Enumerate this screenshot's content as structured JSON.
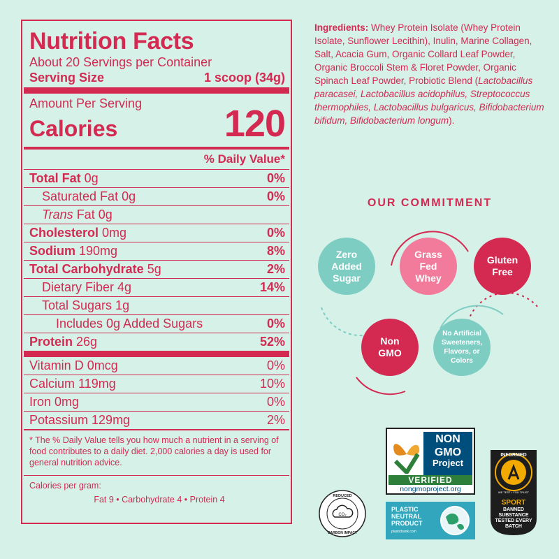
{
  "nutrition": {
    "title": "Nutrition Facts",
    "servings": "About 20 Servings per Container",
    "serving_size_label": "Serving Size",
    "serving_size_value": "1 scoop (34g)",
    "amount_per_serving": "Amount Per Serving",
    "calories_label": "Calories",
    "calories_value": "120",
    "dv_header": "% Daily Value*",
    "rows": [
      {
        "bold": "Total Fat",
        "rest": " 0g",
        "pct": "0%"
      },
      {
        "bold": "",
        "rest": "Saturated Fat 0g",
        "pct": "0%"
      },
      {
        "italic": "Trans",
        "rest": " Fat 0g",
        "pct": ""
      },
      {
        "bold": "Cholesterol",
        "rest": " 0mg",
        "pct": "0%"
      },
      {
        "bold": "Sodium",
        "rest": " 190mg",
        "pct": "8%"
      },
      {
        "bold": "Total Carbohydrate",
        "rest": " 5g",
        "pct": "2%"
      },
      {
        "bold": "",
        "rest": "Dietary Fiber 4g",
        "pct": "14%"
      },
      {
        "bold": "",
        "rest": "Total Sugars 1g",
        "pct": ""
      },
      {
        "bold": "",
        "rest": "Includes 0g Added Sugars",
        "pct": "0%"
      },
      {
        "bold": "Protein",
        "rest": " 26g",
        "pct": "52%"
      }
    ],
    "vitamins": [
      {
        "name": "Vitamin D 0mcg",
        "pct": "0%"
      },
      {
        "name": "Calcium 119mg",
        "pct": "10%"
      },
      {
        "name": "Iron 0mg",
        "pct": "0%"
      },
      {
        "name": "Potassium 129mg",
        "pct": "2%"
      }
    ],
    "footnote": "* The % Daily Value tells you how much a nutrient in a serving of food contributes to a daily diet. 2,000 calories a day is used for general nutrition advice.",
    "calories_per_gram_label": "Calories per gram:",
    "calories_per_gram_values": "Fat 9  •  Carbohydrate 4  •  Protein 4"
  },
  "ingredients": {
    "label": "Ingredients:",
    "text_part1": " Whey Protein Isolate (Whey Protein Isolate, Sunflower Lecithin), Inulin, Marine Collagen, Salt, Acacia Gum, Organic Collard Leaf Powder, Organic Broccoli Stem & Floret Powder, Organic Spinach Leaf Powder, Probiotic Blend (",
    "italic_text": "Lactobacillus paracasei, Lactobacillus acidophilus, Streptococcus thermophiles, Lactobacillus bulgaricus, Bifidobacterium bifidum, Bifidobacterium longum",
    "text_part2": ")."
  },
  "commitment": {
    "title": "OUR COMMITMENT",
    "badges": [
      {
        "text": "Zero Added Sugar",
        "color": "#7ecdc3"
      },
      {
        "text": "Grass Fed Whey",
        "color": "#f27a9b"
      },
      {
        "text": "Gluten Free",
        "color": "#d42a52"
      },
      {
        "text": "Non GMO",
        "color": "#d42a52"
      },
      {
        "text": "No Artificial Sweeteners, Flavors, or Colors",
        "color": "#7ecdc3"
      }
    ]
  },
  "certifications": {
    "nongmo_line1": "NON",
    "nongmo_line2": "GMO",
    "nongmo_line3": "Project",
    "nongmo_verified": "VERIFIED",
    "nongmo_site": "nongmoproject.org",
    "reduced_top": "REDUCED",
    "reduced_bottom": "CARBON IMPACT",
    "reduced_symbol": "CO₂",
    "plastic_text": "PLASTIC NEUTRAL PRODUCT",
    "plastic_site": "plasticbank.com",
    "informed_top": "INFORMED",
    "informed_tag": "WE TEST • YOU TRUST",
    "informed_sport": "SPORT",
    "informed_banned": "BANNED SUBSTANCE TESTED EVERY BATCH"
  },
  "colors": {
    "brand": "#d42a52",
    "background": "#d5f1e8",
    "teal": "#7ecdc3",
    "pink": "#f27a9b"
  }
}
